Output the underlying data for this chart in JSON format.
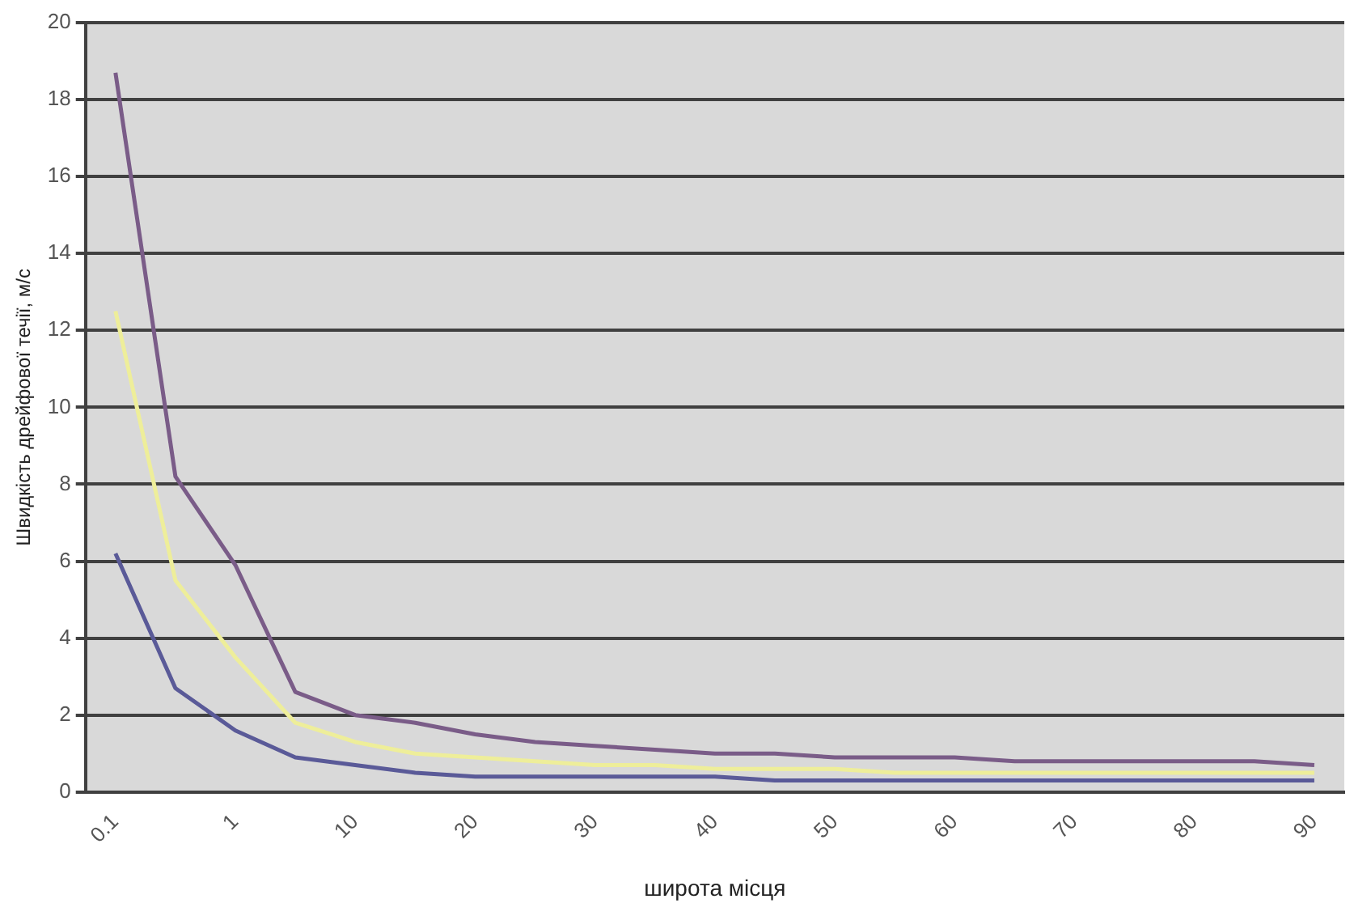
{
  "chart_data": {
    "type": "line",
    "xlabel": "широта місця",
    "ylabel": "Швидкість дрейфової течії, м/с",
    "categories": [
      "0.1",
      null,
      "1",
      null,
      "10",
      null,
      "20",
      null,
      "30",
      null,
      "40",
      null,
      "50",
      null,
      "60",
      null,
      "70",
      null,
      "80",
      null,
      "90"
    ],
    "series": [
      {
        "color": "#7a5c88",
        "values": [
          18.7,
          8.2,
          5.9,
          2.6,
          2.0,
          1.8,
          1.5,
          1.3,
          1.2,
          1.1,
          1.0,
          1.0,
          0.9,
          0.9,
          0.9,
          0.8,
          0.8,
          0.8,
          0.8,
          0.8,
          0.7
        ]
      },
      {
        "color": "#eeee9a",
        "values": [
          12.5,
          5.5,
          3.5,
          1.8,
          1.3,
          1.0,
          0.9,
          0.8,
          0.7,
          0.7,
          0.6,
          0.6,
          0.6,
          0.5,
          0.5,
          0.5,
          0.5,
          0.5,
          0.5,
          0.5,
          0.5
        ]
      },
      {
        "color": "#5a5a98",
        "values": [
          6.2,
          2.7,
          1.6,
          0.9,
          0.7,
          0.5,
          0.4,
          0.4,
          0.4,
          0.4,
          0.4,
          0.3,
          0.3,
          0.3,
          0.3,
          0.3,
          0.3,
          0.3,
          0.3,
          0.3,
          0.3
        ]
      }
    ],
    "ylim": [
      0,
      20
    ],
    "yticks": [
      0,
      2,
      4,
      6,
      8,
      10,
      12,
      14,
      16,
      18,
      20
    ],
    "grid": "y",
    "legend": false,
    "marker": "none",
    "line_style": "solid"
  }
}
